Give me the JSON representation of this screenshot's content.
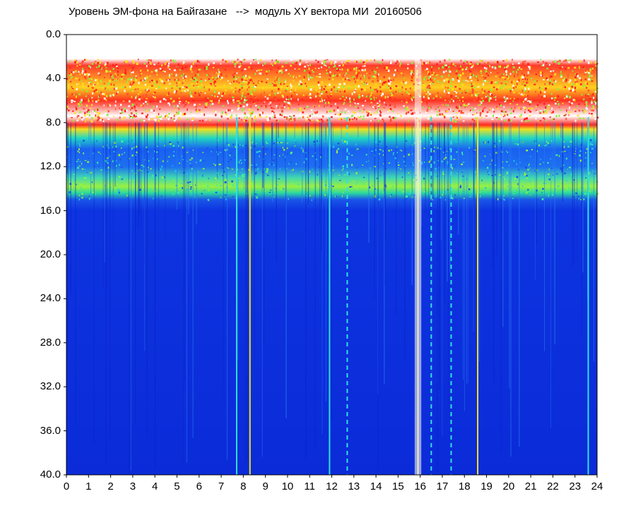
{
  "chart_data": {
    "type": "heatmap",
    "title": "Уровень ЭМ-фона на Байгазане   -->  модуль XY вектора МИ  20160506",
    "x_ticks": [
      "0",
      "1",
      "2",
      "3",
      "4",
      "5",
      "6",
      "7",
      "8",
      "9",
      "10",
      "11",
      "12",
      "13",
      "14",
      "15",
      "16",
      "17",
      "18",
      "19",
      "20",
      "21",
      "22",
      "23",
      "24"
    ],
    "y_ticks": [
      "0.0",
      "4.0",
      "8.0",
      "12.0",
      "16.0",
      "20.0",
      "24.0",
      "28.0",
      "32.0",
      "36.0",
      "40.0"
    ],
    "xlim": [
      0,
      24
    ],
    "ylim": [
      0,
      40
    ],
    "y_inverted": true,
    "colorscale": [
      "#0b2be0",
      "#1e6cf0",
      "#22c8e8",
      "#8cf040",
      "#f0e020",
      "#ff2020",
      "#ffffff"
    ],
    "bands": [
      {
        "from": 0.0,
        "to": 2.5,
        "level": "none"
      },
      {
        "from": 2.5,
        "to": 7.5,
        "level": "high-sparse"
      },
      {
        "from": 7.5,
        "to": 8.3,
        "level": "gap"
      },
      {
        "from": 8.3,
        "to": 9.5,
        "level": "high"
      },
      {
        "from": 9.5,
        "to": 12.5,
        "level": "medium"
      },
      {
        "from": 12.5,
        "to": 15.0,
        "level": "medium-high"
      },
      {
        "from": 15.0,
        "to": 40.0,
        "level": "low"
      }
    ],
    "notable_hours": [
      7.7,
      8.3,
      11.9,
      12.7,
      15.9,
      16.5,
      17.4,
      18.6,
      23.6
    ]
  }
}
